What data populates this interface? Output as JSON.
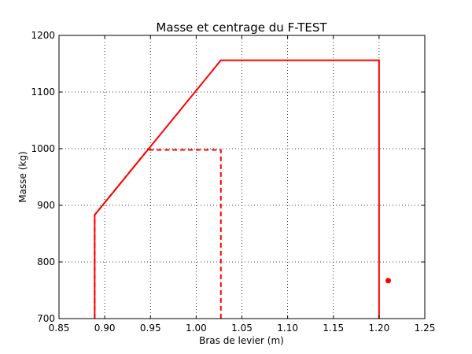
{
  "chart_data": {
    "type": "line",
    "title": "Masse et centrage du F-TEST",
    "xlabel": "Bras de levier (m)",
    "ylabel": "Masse (kg)",
    "xlim": [
      0.85,
      1.25
    ],
    "ylim": [
      700,
      1200
    ],
    "xticks": [
      "0.85",
      "0.90",
      "0.95",
      "1.00",
      "1.05",
      "1.10",
      "1.15",
      "1.20",
      "1.25"
    ],
    "yticks": [
      "700",
      "800",
      "900",
      "1000",
      "1100",
      "1200"
    ],
    "grid": true,
    "color": "#ff0000",
    "series": [
      {
        "style": "solid",
        "x": [
          0.889,
          0.889,
          1.027,
          1.2,
          1.2
        ],
        "y": [
          700,
          883,
          1156,
          1156,
          700
        ]
      },
      {
        "style": "dashed",
        "x": [
          0.889,
          0.889,
          0.947,
          1.027,
          1.027
        ],
        "y": [
          700,
          883,
          998,
          998,
          700
        ]
      }
    ],
    "points": [
      {
        "x": 1.21,
        "y": 767
      }
    ]
  }
}
